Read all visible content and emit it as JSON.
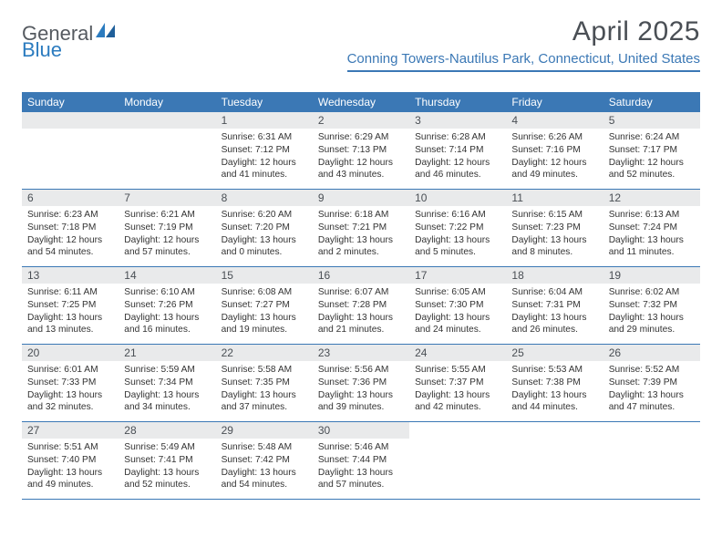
{
  "logo": {
    "general": "General",
    "blue": "Blue"
  },
  "title": "April 2025",
  "location": "Conning Towers-Nautilus Park, Connecticut, United States",
  "colors": {
    "header_bg": "#3b78b5",
    "header_text": "#ffffff",
    "daynum_bg": "#e9eaeb",
    "rule": "#3b78b5",
    "title_text": "#4a4f55",
    "location_text": "#3b78b5"
  },
  "day_headers": [
    "Sunday",
    "Monday",
    "Tuesday",
    "Wednesday",
    "Thursday",
    "Friday",
    "Saturday"
  ],
  "weeks": [
    [
      null,
      null,
      {
        "n": "1",
        "sr": "Sunrise: 6:31 AM",
        "ss": "Sunset: 7:12 PM",
        "d1": "Daylight: 12 hours",
        "d2": "and 41 minutes."
      },
      {
        "n": "2",
        "sr": "Sunrise: 6:29 AM",
        "ss": "Sunset: 7:13 PM",
        "d1": "Daylight: 12 hours",
        "d2": "and 43 minutes."
      },
      {
        "n": "3",
        "sr": "Sunrise: 6:28 AM",
        "ss": "Sunset: 7:14 PM",
        "d1": "Daylight: 12 hours",
        "d2": "and 46 minutes."
      },
      {
        "n": "4",
        "sr": "Sunrise: 6:26 AM",
        "ss": "Sunset: 7:16 PM",
        "d1": "Daylight: 12 hours",
        "d2": "and 49 minutes."
      },
      {
        "n": "5",
        "sr": "Sunrise: 6:24 AM",
        "ss": "Sunset: 7:17 PM",
        "d1": "Daylight: 12 hours",
        "d2": "and 52 minutes."
      }
    ],
    [
      {
        "n": "6",
        "sr": "Sunrise: 6:23 AM",
        "ss": "Sunset: 7:18 PM",
        "d1": "Daylight: 12 hours",
        "d2": "and 54 minutes."
      },
      {
        "n": "7",
        "sr": "Sunrise: 6:21 AM",
        "ss": "Sunset: 7:19 PM",
        "d1": "Daylight: 12 hours",
        "d2": "and 57 minutes."
      },
      {
        "n": "8",
        "sr": "Sunrise: 6:20 AM",
        "ss": "Sunset: 7:20 PM",
        "d1": "Daylight: 13 hours",
        "d2": "and 0 minutes."
      },
      {
        "n": "9",
        "sr": "Sunrise: 6:18 AM",
        "ss": "Sunset: 7:21 PM",
        "d1": "Daylight: 13 hours",
        "d2": "and 2 minutes."
      },
      {
        "n": "10",
        "sr": "Sunrise: 6:16 AM",
        "ss": "Sunset: 7:22 PM",
        "d1": "Daylight: 13 hours",
        "d2": "and 5 minutes."
      },
      {
        "n": "11",
        "sr": "Sunrise: 6:15 AM",
        "ss": "Sunset: 7:23 PM",
        "d1": "Daylight: 13 hours",
        "d2": "and 8 minutes."
      },
      {
        "n": "12",
        "sr": "Sunrise: 6:13 AM",
        "ss": "Sunset: 7:24 PM",
        "d1": "Daylight: 13 hours",
        "d2": "and 11 minutes."
      }
    ],
    [
      {
        "n": "13",
        "sr": "Sunrise: 6:11 AM",
        "ss": "Sunset: 7:25 PM",
        "d1": "Daylight: 13 hours",
        "d2": "and 13 minutes."
      },
      {
        "n": "14",
        "sr": "Sunrise: 6:10 AM",
        "ss": "Sunset: 7:26 PM",
        "d1": "Daylight: 13 hours",
        "d2": "and 16 minutes."
      },
      {
        "n": "15",
        "sr": "Sunrise: 6:08 AM",
        "ss": "Sunset: 7:27 PM",
        "d1": "Daylight: 13 hours",
        "d2": "and 19 minutes."
      },
      {
        "n": "16",
        "sr": "Sunrise: 6:07 AM",
        "ss": "Sunset: 7:28 PM",
        "d1": "Daylight: 13 hours",
        "d2": "and 21 minutes."
      },
      {
        "n": "17",
        "sr": "Sunrise: 6:05 AM",
        "ss": "Sunset: 7:30 PM",
        "d1": "Daylight: 13 hours",
        "d2": "and 24 minutes."
      },
      {
        "n": "18",
        "sr": "Sunrise: 6:04 AM",
        "ss": "Sunset: 7:31 PM",
        "d1": "Daylight: 13 hours",
        "d2": "and 26 minutes."
      },
      {
        "n": "19",
        "sr": "Sunrise: 6:02 AM",
        "ss": "Sunset: 7:32 PM",
        "d1": "Daylight: 13 hours",
        "d2": "and 29 minutes."
      }
    ],
    [
      {
        "n": "20",
        "sr": "Sunrise: 6:01 AM",
        "ss": "Sunset: 7:33 PM",
        "d1": "Daylight: 13 hours",
        "d2": "and 32 minutes."
      },
      {
        "n": "21",
        "sr": "Sunrise: 5:59 AM",
        "ss": "Sunset: 7:34 PM",
        "d1": "Daylight: 13 hours",
        "d2": "and 34 minutes."
      },
      {
        "n": "22",
        "sr": "Sunrise: 5:58 AM",
        "ss": "Sunset: 7:35 PM",
        "d1": "Daylight: 13 hours",
        "d2": "and 37 minutes."
      },
      {
        "n": "23",
        "sr": "Sunrise: 5:56 AM",
        "ss": "Sunset: 7:36 PM",
        "d1": "Daylight: 13 hours",
        "d2": "and 39 minutes."
      },
      {
        "n": "24",
        "sr": "Sunrise: 5:55 AM",
        "ss": "Sunset: 7:37 PM",
        "d1": "Daylight: 13 hours",
        "d2": "and 42 minutes."
      },
      {
        "n": "25",
        "sr": "Sunrise: 5:53 AM",
        "ss": "Sunset: 7:38 PM",
        "d1": "Daylight: 13 hours",
        "d2": "and 44 minutes."
      },
      {
        "n": "26",
        "sr": "Sunrise: 5:52 AM",
        "ss": "Sunset: 7:39 PM",
        "d1": "Daylight: 13 hours",
        "d2": "and 47 minutes."
      }
    ],
    [
      {
        "n": "27",
        "sr": "Sunrise: 5:51 AM",
        "ss": "Sunset: 7:40 PM",
        "d1": "Daylight: 13 hours",
        "d2": "and 49 minutes."
      },
      {
        "n": "28",
        "sr": "Sunrise: 5:49 AM",
        "ss": "Sunset: 7:41 PM",
        "d1": "Daylight: 13 hours",
        "d2": "and 52 minutes."
      },
      {
        "n": "29",
        "sr": "Sunrise: 5:48 AM",
        "ss": "Sunset: 7:42 PM",
        "d1": "Daylight: 13 hours",
        "d2": "and 54 minutes."
      },
      {
        "n": "30",
        "sr": "Sunrise: 5:46 AM",
        "ss": "Sunset: 7:44 PM",
        "d1": "Daylight: 13 hours",
        "d2": "and 57 minutes."
      },
      null,
      null,
      null
    ]
  ]
}
